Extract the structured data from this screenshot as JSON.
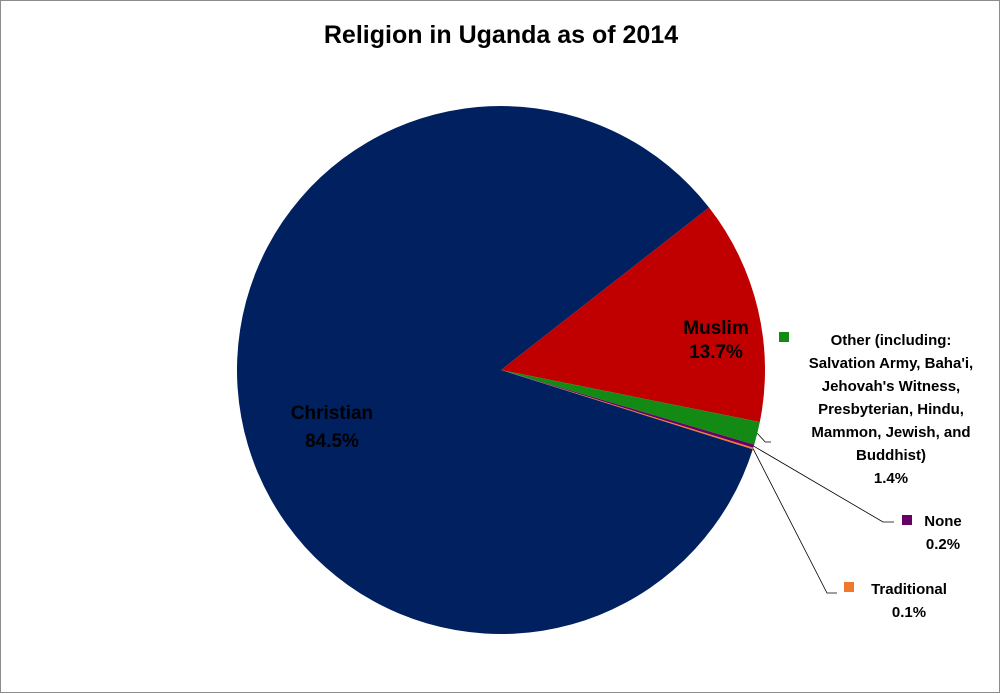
{
  "chart_data": {
    "type": "pie",
    "title": "Religion in Uganda as of 2014",
    "slices": [
      {
        "label": "Muslim",
        "value": 13.7,
        "display": "13.7%",
        "color": "#c00000",
        "label_lines": [
          "Muslim"
        ]
      },
      {
        "label": "Other (including: Salvation Army, Baha'i, Jehovah's Witness, Presbyterian, Hindu, Mammon, Jewish, and Buddhist)",
        "value": 1.4,
        "display": "1.4%",
        "color": "#138a13",
        "label_lines": [
          "Other (including:",
          "Salvation Army, Baha'i,",
          "Jehovah's Witness,",
          "Presbyterian, Hindu,",
          "Mammon, Jewish, and",
          "Buddhist)"
        ]
      },
      {
        "label": "None",
        "value": 0.2,
        "display": "0.2%",
        "color": "#660066",
        "label_lines": [
          "None"
        ]
      },
      {
        "label": "Traditional",
        "value": 0.1,
        "display": "0.1%",
        "color": "#f0782c",
        "label_lines": [
          "Traditional"
        ]
      },
      {
        "label": "Christian",
        "value": 84.5,
        "display": "84.5%",
        "color": "#002060",
        "label_lines": [
          "Christian"
        ]
      }
    ]
  }
}
